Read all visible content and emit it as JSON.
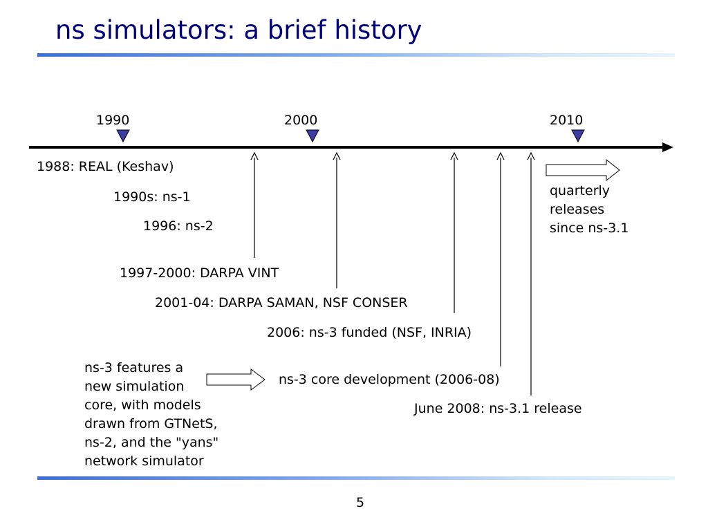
{
  "title": "ns simulators:  a brief history",
  "timeline": {
    "year_marks": [
      "1990",
      "2000",
      "2010"
    ],
    "marker_color": "#3d3da3",
    "events": {
      "real": "1988: REAL (Keshav)",
      "ns1": "1990s: ns-1",
      "ns2": "1996: ns-2",
      "vint": "1997-2000: DARPA VINT",
      "saman": "2001-04: DARPA SAMAN, NSF CONSER",
      "ns3_funded": "2006:  ns-3 funded (NSF, INRIA)",
      "core_dev": "ns-3 core development (2006-08)",
      "release": "June 2008:  ns-3.1 release"
    },
    "quarterly_note": [
      "quarterly",
      "releases",
      "since ns-3.1"
    ],
    "features_note": [
      "ns-3 features a",
      "new simulation",
      "core, with models",
      "drawn from GTNetS,",
      "ns-2, and the \"yans\"",
      "network simulator"
    ]
  },
  "page_number": "5",
  "colors": {
    "title": "#00007a",
    "rule_start": "#3a6fd8",
    "rule_end": "#e6f4fd"
  }
}
